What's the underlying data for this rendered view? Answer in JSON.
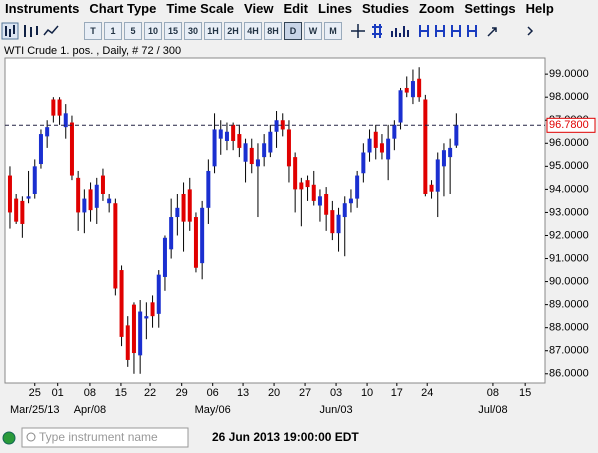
{
  "menu": [
    "Instruments",
    "Chart Type",
    "Time Scale",
    "View",
    "Edit",
    "Lines",
    "Studies",
    "Zoom",
    "Settings",
    "Help"
  ],
  "toolbar": [
    "T",
    "1",
    "5",
    "10",
    "15",
    "30",
    "1H",
    "2H",
    "4H",
    "8H",
    "D",
    "W",
    "M"
  ],
  "status": {
    "placeholder": "Type instrument name",
    "datetime": "26 Jun 2013 19:00:00 EDT"
  },
  "chart_data": {
    "type": "candlestick",
    "title": "WTI Crude 1. pos. , Daily, # 72 / 300",
    "up_color": "#1a2fd0",
    "down_color": "#e00000",
    "open": [
      94.6,
      93.6,
      93.5,
      93.6,
      93.8,
      95.1,
      96.3,
      97.9,
      97.9,
      96.7,
      96.9,
      94.5,
      93.0,
      94.0,
      93.2,
      94.6,
      93.4,
      93.4,
      90.5,
      88.1,
      89.0,
      86.8,
      88.4,
      89.1,
      88.6,
      90.2,
      91.4,
      92.8,
      93.8,
      94.0,
      92.8,
      90.8,
      93.2,
      95.0,
      96.2,
      96.1,
      96.8,
      96.4,
      95.2,
      95.8,
      95.0,
      95.4,
      95.6,
      96.5,
      97.0,
      96.6,
      95.4,
      94.3,
      94.4,
      94.2,
      93.3,
      93.8,
      93.1,
      92.1,
      92.8,
      93.4,
      93.6,
      94.7,
      95.6,
      96.5,
      96.0,
      95.3,
      96.2,
      96.9,
      98.4,
      98.0,
      98.8,
      97.9,
      94.2,
      93.9,
      95.0,
      95.4,
      95.9
    ],
    "high": [
      95.0,
      93.8,
      93.7,
      94.8,
      95.3,
      96.6,
      97.0,
      98.0,
      98.0,
      97.7,
      97.2,
      94.8,
      94.0,
      94.3,
      94.5,
      94.9,
      93.8,
      93.6,
      90.7,
      88.5,
      89.1,
      89.2,
      89.1,
      89.4,
      90.5,
      92.0,
      93.6,
      93.8,
      94.3,
      94.5,
      93.0,
      93.5,
      95.3,
      97.3,
      97.0,
      96.9,
      96.9,
      96.8,
      96.2,
      96.2,
      96.0,
      96.4,
      96.8,
      97.4,
      97.3,
      97.0,
      95.6,
      94.5,
      94.6,
      94.8,
      94.0,
      94.1,
      93.5,
      93.2,
      93.7,
      94.0,
      94.8,
      96.0,
      96.6,
      96.8,
      96.4,
      96.8,
      97.0,
      98.4,
      98.9,
      99.2,
      99.3,
      98.1,
      94.4,
      95.6,
      96.0,
      96.2,
      97.3
    ],
    "low": [
      92.3,
      92.5,
      91.9,
      93.4,
      93.6,
      94.9,
      95.8,
      96.9,
      96.8,
      96.2,
      94.4,
      92.2,
      92.1,
      92.6,
      92.5,
      93.5,
      93.0,
      89.4,
      87.2,
      86.3,
      86.0,
      86.0,
      87.5,
      88.0,
      88.0,
      89.6,
      91.0,
      92.0,
      91.3,
      92.2,
      90.4,
      90.1,
      92.5,
      94.7,
      95.5,
      95.7,
      95.7,
      95.4,
      94.3,
      94.7,
      92.8,
      95.0,
      95.4,
      95.8,
      96.3,
      94.3,
      93.0,
      92.4,
      93.5,
      93.3,
      92.6,
      92.2,
      91.8,
      91.3,
      91.1,
      93.0,
      93.2,
      94.3,
      95.2,
      95.3,
      95.3,
      94.4,
      95.7,
      96.6,
      98.0,
      97.7,
      97.8,
      93.7,
      93.6,
      92.8,
      93.7,
      93.8,
      95.8
    ],
    "close": [
      93.0,
      92.6,
      92.5,
      93.7,
      95.0,
      96.4,
      96.7,
      97.2,
      97.2,
      97.3,
      94.6,
      93.0,
      93.6,
      93.1,
      94.2,
      93.8,
      93.6,
      89.7,
      87.6,
      86.6,
      86.9,
      88.7,
      88.5,
      88.5,
      90.3,
      91.9,
      92.8,
      93.2,
      92.6,
      92.6,
      90.6,
      93.2,
      94.8,
      96.6,
      96.6,
      96.5,
      96.1,
      95.8,
      96.0,
      95.1,
      95.3,
      96.0,
      96.5,
      97.0,
      96.6,
      95.0,
      94.0,
      94.0,
      94.1,
      93.5,
      93.7,
      92.9,
      92.1,
      92.9,
      93.4,
      93.6,
      94.6,
      95.6,
      96.2,
      95.8,
      95.6,
      96.2,
      96.8,
      98.3,
      98.2,
      98.7,
      98.0,
      93.8,
      93.9,
      95.3,
      95.7,
      95.8,
      96.8
    ],
    "last_price": 96.78,
    "last_price_label": "96.7800",
    "xlim": [
      -0.8,
      86.3
    ],
    "ylim": [
      85.6,
      99.7
    ],
    "yticks": [
      {
        "value": 86,
        "label": "86.0000"
      },
      {
        "value": 87,
        "label": "87.0000"
      },
      {
        "value": 88,
        "label": "88.0000"
      },
      {
        "value": 89,
        "label": "89.0000"
      },
      {
        "value": 90,
        "label": "90.0000"
      },
      {
        "value": 91,
        "label": "91.0000"
      },
      {
        "value": 92,
        "label": "92.0000"
      },
      {
        "value": 93,
        "label": "93.0000"
      },
      {
        "value": 94,
        "label": "94.0000"
      },
      {
        "value": 95,
        "label": "95.0000"
      },
      {
        "value": 96,
        "label": "96.0000"
      },
      {
        "value": 97,
        "label": "97.0000"
      },
      {
        "value": 98,
        "label": "98.0000"
      },
      {
        "value": 99,
        "label": "99.0000"
      }
    ],
    "xticks": [
      {
        "value": 4.0,
        "label": "25"
      },
      {
        "value": 7.7,
        "label": "01"
      },
      {
        "value": 12.9,
        "label": "08"
      },
      {
        "value": 17.9,
        "label": "15"
      },
      {
        "value": 22.6,
        "label": "22"
      },
      {
        "value": 27.7,
        "label": "29"
      },
      {
        "value": 32.7,
        "label": "06"
      },
      {
        "value": 37.6,
        "label": "13"
      },
      {
        "value": 42.6,
        "label": "20"
      },
      {
        "value": 47.6,
        "label": "27"
      },
      {
        "value": 52.6,
        "label": "03"
      },
      {
        "value": 57.6,
        "label": "10"
      },
      {
        "value": 62.4,
        "label": "17"
      },
      {
        "value": 67.3,
        "label": "24"
      },
      {
        "value": 77.9,
        "label": "08"
      },
      {
        "value": 83.1,
        "label": "15"
      }
    ],
    "xticks_major": [
      {
        "value": 4.0,
        "label": "Mar/25/13"
      },
      {
        "value": 12.9,
        "label": "Apr/08"
      },
      {
        "value": 32.7,
        "label": "May/06"
      },
      {
        "value": 52.6,
        "label": "Jun/03"
      },
      {
        "value": 77.9,
        "label": "Jul/08"
      }
    ]
  }
}
